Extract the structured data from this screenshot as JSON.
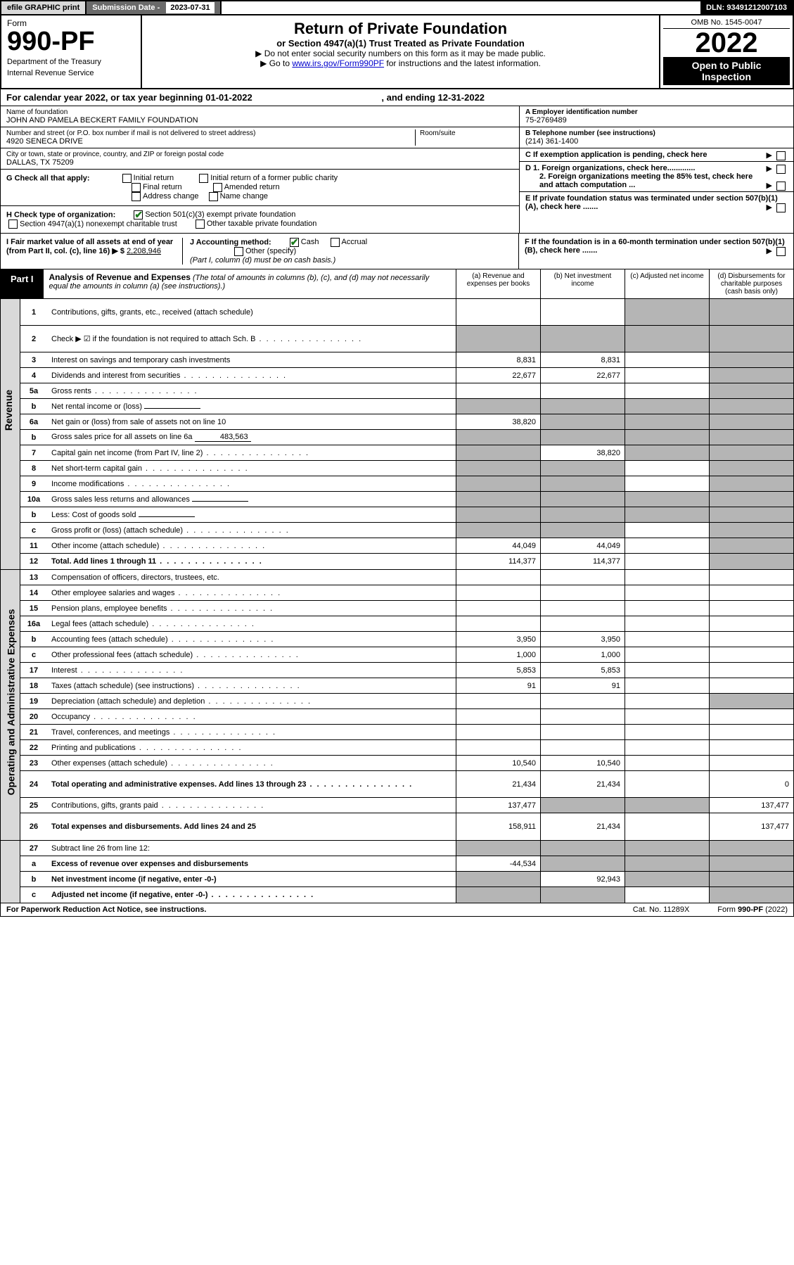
{
  "top": {
    "efile": "efile GRAPHIC print",
    "sub_date_label": "Submission Date - ",
    "sub_date": "2023-07-31",
    "dln": "DLN: 93491212007103"
  },
  "header": {
    "form_word": "Form",
    "form_no": "990-PF",
    "dept": "Department of the Treasury",
    "irs": "Internal Revenue Service",
    "title": "Return of Private Foundation",
    "subtitle": "or Section 4947(a)(1) Trust Treated as Private Foundation",
    "instr1": "▶ Do not enter social security numbers on this form as it may be made public.",
    "instr2_pre": "▶ Go to ",
    "instr2_link": "www.irs.gov/Form990PF",
    "instr2_post": " for instructions and the latest information.",
    "omb": "OMB No. 1545-0047",
    "year": "2022",
    "open": "Open to Public Inspection"
  },
  "cal_year": {
    "text1": "For calendar year 2022, or tax year beginning ",
    "begin": "01-01-2022",
    "text2": ", and ending ",
    "end": "12-31-2022"
  },
  "info": {
    "name_label": "Name of foundation",
    "name": "JOHN AND PAMELA BECKERT FAMILY FOUNDATION",
    "addr_label": "Number and street (or P.O. box number if mail is not delivered to street address)",
    "addr": "4920 SENECA DRIVE",
    "room_label": "Room/suite",
    "city_label": "City or town, state or province, country, and ZIP or foreign postal code",
    "city": "DALLAS, TX  75209",
    "ein_label": "A Employer identification number",
    "ein": "75-2769489",
    "phone_label": "B Telephone number (see instructions)",
    "phone": "(214) 361-1400",
    "c_label": "C If exemption application is pending, check here",
    "d1_label": "D 1. Foreign organizations, check here.............",
    "d2_label": "2. Foreign organizations meeting the 85% test, check here and attach computation ...",
    "e_label": "E  If private foundation status was terminated under section 507(b)(1)(A), check here .......",
    "f_label": "F  If the foundation is in a 60-month termination under section 507(b)(1)(B), check here .......",
    "g_label": "G Check all that apply:",
    "g_opts": [
      "Initial return",
      "Initial return of a former public charity",
      "Final return",
      "Amended return",
      "Address change",
      "Name change"
    ],
    "h_label": "H Check type of organization:",
    "h_opt1": "Section 501(c)(3) exempt private foundation",
    "h_opt2": "Section 4947(a)(1) nonexempt charitable trust",
    "h_opt3": "Other taxable private foundation",
    "i_label": "I Fair market value of all assets at end of year (from Part II, col. (c), line 16) ▶ $",
    "i_val": "2,208,946",
    "j_label": "J Accounting method:",
    "j_cash": "Cash",
    "j_accrual": "Accrual",
    "j_other": "Other (specify)",
    "j_note": "(Part I, column (d) must be on cash basis.)"
  },
  "part1": {
    "label": "Part I",
    "title": "Analysis of Revenue and Expenses",
    "desc": " (The total of amounts in columns (b), (c), and (d) may not necessarily equal the amounts in column (a) (see instructions).)",
    "col_a": "(a)   Revenue and expenses per books",
    "col_b": "(b)   Net investment income",
    "col_c": "(c)   Adjusted net income",
    "col_d": "(d)   Disbursements for charitable purposes (cash basis only)"
  },
  "side_labels": {
    "revenue": "Revenue",
    "expenses": "Operating and Administrative Expenses"
  },
  "rows": [
    {
      "n": "1",
      "label": "Contributions, gifts, grants, etc., received (attach schedule)",
      "a": "",
      "b": "",
      "c": "s",
      "d": "s",
      "tall": true
    },
    {
      "n": "2",
      "label": "Check ▶ ☑ if the foundation is not required to attach Sch. B",
      "a": "s",
      "b": "s",
      "c": "s",
      "d": "s",
      "tall": true,
      "dots": true
    },
    {
      "n": "3",
      "label": "Interest on savings and temporary cash investments",
      "a": "8,831",
      "b": "8,831",
      "c": "",
      "d": "s"
    },
    {
      "n": "4",
      "label": "Dividends and interest from securities",
      "a": "22,677",
      "b": "22,677",
      "c": "",
      "d": "s",
      "dots": true
    },
    {
      "n": "5a",
      "label": "Gross rents",
      "a": "",
      "b": "",
      "c": "",
      "d": "s",
      "dots": true
    },
    {
      "n": "b",
      "label": "Net rental income or (loss)",
      "a": "s",
      "b": "s",
      "c": "s",
      "d": "s",
      "inline": ""
    },
    {
      "n": "6a",
      "label": "Net gain or (loss) from sale of assets not on line 10",
      "a": "38,820",
      "b": "s",
      "c": "s",
      "d": "s"
    },
    {
      "n": "b",
      "label": "Gross sales price for all assets on line 6a",
      "a": "s",
      "b": "s",
      "c": "s",
      "d": "s",
      "inline": "483,563"
    },
    {
      "n": "7",
      "label": "Capital gain net income (from Part IV, line 2)",
      "a": "s",
      "b": "38,820",
      "c": "s",
      "d": "s",
      "dots": true
    },
    {
      "n": "8",
      "label": "Net short-term capital gain",
      "a": "s",
      "b": "s",
      "c": "",
      "d": "s",
      "dots": true
    },
    {
      "n": "9",
      "label": "Income modifications",
      "a": "s",
      "b": "s",
      "c": "",
      "d": "s",
      "dots": true
    },
    {
      "n": "10a",
      "label": "Gross sales less returns and allowances",
      "a": "s",
      "b": "s",
      "c": "s",
      "d": "s",
      "inline": ""
    },
    {
      "n": "b",
      "label": "Less: Cost of goods sold",
      "a": "s",
      "b": "s",
      "c": "s",
      "d": "s",
      "dots": true,
      "inline": ""
    },
    {
      "n": "c",
      "label": "Gross profit or (loss) (attach schedule)",
      "a": "s",
      "b": "s",
      "c": "",
      "d": "s",
      "dots": true
    },
    {
      "n": "11",
      "label": "Other income (attach schedule)",
      "a": "44,049",
      "b": "44,049",
      "c": "",
      "d": "s",
      "dots": true
    },
    {
      "n": "12",
      "label": "Total. Add lines 1 through 11",
      "a": "114,377",
      "b": "114,377",
      "c": "",
      "d": "s",
      "bold": true,
      "dots": true
    }
  ],
  "exp_rows": [
    {
      "n": "13",
      "label": "Compensation of officers, directors, trustees, etc.",
      "a": "",
      "b": "",
      "c": "",
      "d": ""
    },
    {
      "n": "14",
      "label": "Other employee salaries and wages",
      "a": "",
      "b": "",
      "c": "",
      "d": "",
      "dots": true
    },
    {
      "n": "15",
      "label": "Pension plans, employee benefits",
      "a": "",
      "b": "",
      "c": "",
      "d": "",
      "dots": true
    },
    {
      "n": "16a",
      "label": "Legal fees (attach schedule)",
      "a": "",
      "b": "",
      "c": "",
      "d": "",
      "dots": true
    },
    {
      "n": "b",
      "label": "Accounting fees (attach schedule)",
      "a": "3,950",
      "b": "3,950",
      "c": "",
      "d": "",
      "dots": true
    },
    {
      "n": "c",
      "label": "Other professional fees (attach schedule)",
      "a": "1,000",
      "b": "1,000",
      "c": "",
      "d": "",
      "dots": true
    },
    {
      "n": "17",
      "label": "Interest",
      "a": "5,853",
      "b": "5,853",
      "c": "",
      "d": "",
      "dots": true
    },
    {
      "n": "18",
      "label": "Taxes (attach schedule) (see instructions)",
      "a": "91",
      "b": "91",
      "c": "",
      "d": "",
      "dots": true
    },
    {
      "n": "19",
      "label": "Depreciation (attach schedule) and depletion",
      "a": "",
      "b": "",
      "c": "",
      "d": "s",
      "dots": true
    },
    {
      "n": "20",
      "label": "Occupancy",
      "a": "",
      "b": "",
      "c": "",
      "d": "",
      "dots": true
    },
    {
      "n": "21",
      "label": "Travel, conferences, and meetings",
      "a": "",
      "b": "",
      "c": "",
      "d": "",
      "dots": true
    },
    {
      "n": "22",
      "label": "Printing and publications",
      "a": "",
      "b": "",
      "c": "",
      "d": "",
      "dots": true
    },
    {
      "n": "23",
      "label": "Other expenses (attach schedule)",
      "a": "10,540",
      "b": "10,540",
      "c": "",
      "d": "",
      "dots": true
    },
    {
      "n": "24",
      "label": "Total operating and administrative expenses. Add lines 13 through 23",
      "a": "21,434",
      "b": "21,434",
      "c": "",
      "d": "0",
      "bold": true,
      "dots": true,
      "tall": true
    },
    {
      "n": "25",
      "label": "Contributions, gifts, grants paid",
      "a": "137,477",
      "b": "s",
      "c": "s",
      "d": "137,477",
      "dots": true
    },
    {
      "n": "26",
      "label": "Total expenses and disbursements. Add lines 24 and 25",
      "a": "158,911",
      "b": "21,434",
      "c": "",
      "d": "137,477",
      "bold": true,
      "tall": true
    }
  ],
  "final_rows": [
    {
      "n": "27",
      "label": "Subtract line 26 from line 12:",
      "a": "s",
      "b": "s",
      "c": "s",
      "d": "s"
    },
    {
      "n": "a",
      "label": "Excess of revenue over expenses and disbursements",
      "a": "-44,534",
      "b": "s",
      "c": "s",
      "d": "s",
      "bold": true
    },
    {
      "n": "b",
      "label": "Net investment income (if negative, enter -0-)",
      "a": "s",
      "b": "92,943",
      "c": "s",
      "d": "s",
      "bold": true
    },
    {
      "n": "c",
      "label": "Adjusted net income (if negative, enter -0-)",
      "a": "s",
      "b": "s",
      "c": "",
      "d": "s",
      "bold": true,
      "dots": true
    }
  ],
  "footer": {
    "left": "For Paperwork Reduction Act Notice, see instructions.",
    "center": "Cat. No. 11289X",
    "right": "Form 990-PF (2022)"
  },
  "colors": {
    "shaded": "#b5b5b5",
    "side_bg": "#d9d9d9",
    "link": "#0000cc",
    "check": "#1a7a1a"
  }
}
